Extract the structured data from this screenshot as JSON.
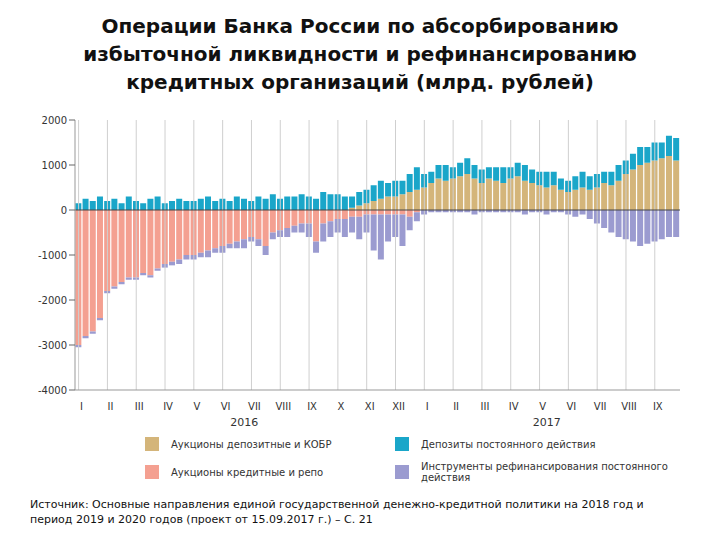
{
  "chart_data": {
    "type": "bar",
    "title": "Операции Банка России по абсорбированию избыточной ликвидности и рефинансированию кредитных организаций (млрд. рублей)",
    "source": "Источник: Основные направления единой государственной денежно-кредитной политики на 2018 год и период 2019 и 2020 годов (проект от 15.09.2017 г.) – С. 21",
    "stacked": true,
    "grid": true,
    "legend": "bottom",
    "ylim": [
      -4000,
      2000
    ],
    "yticks": [
      -4000,
      -3000,
      -2000,
      -1000,
      0,
      1000,
      2000
    ],
    "year_groups": [
      {
        "label": "2016",
        "start": 0,
        "end": 47
      },
      {
        "label": "2017",
        "start": 48,
        "end": 83
      }
    ],
    "categories": [
      "I",
      null,
      null,
      null,
      "II",
      null,
      null,
      null,
      "III",
      null,
      null,
      null,
      "IV",
      null,
      null,
      null,
      "V",
      null,
      null,
      null,
      "VI",
      null,
      null,
      null,
      "VII",
      null,
      null,
      null,
      "VIII",
      null,
      null,
      null,
      "IX",
      null,
      null,
      null,
      "X",
      null,
      null,
      null,
      "XI",
      null,
      null,
      null,
      "XII",
      null,
      null,
      null,
      "I",
      null,
      null,
      null,
      "II",
      null,
      null,
      null,
      "III",
      null,
      null,
      null,
      "IV",
      null,
      null,
      null,
      "V",
      null,
      null,
      null,
      "VI",
      null,
      null,
      null,
      "VII",
      null,
      null,
      null,
      "VIII",
      null,
      null,
      null,
      "IX",
      null,
      null,
      null
    ],
    "series": [
      {
        "name": "Аукционы депозитные и КОБР",
        "color": "#d4b57a",
        "values": [
          0,
          0,
          0,
          0,
          0,
          0,
          0,
          0,
          0,
          0,
          0,
          0,
          0,
          0,
          0,
          0,
          0,
          0,
          0,
          0,
          0,
          0,
          0,
          0,
          0,
          0,
          0,
          0,
          0,
          0,
          0,
          0,
          0,
          0,
          0,
          0,
          0,
          0,
          50,
          100,
          150,
          200,
          250,
          300,
          300,
          350,
          400,
          450,
          500,
          600,
          700,
          650,
          700,
          750,
          800,
          700,
          600,
          700,
          650,
          600,
          700,
          750,
          650,
          600,
          550,
          500,
          550,
          450,
          400,
          450,
          500,
          450,
          500,
          600,
          550,
          650,
          800,
          900,
          1000,
          1050,
          1100,
          1150,
          1200,
          1100
        ]
      },
      {
        "name": "Депозиты постоянного действия",
        "color": "#1aa6c9",
        "values": [
          150,
          250,
          200,
          300,
          200,
          250,
          150,
          300,
          200,
          150,
          250,
          300,
          150,
          200,
          250,
          200,
          200,
          250,
          300,
          200,
          250,
          200,
          300,
          250,
          200,
          300,
          250,
          350,
          250,
          300,
          300,
          350,
          300,
          250,
          400,
          350,
          350,
          300,
          250,
          300,
          300,
          350,
          400,
          300,
          350,
          300,
          400,
          500,
          300,
          250,
          300,
          350,
          250,
          300,
          350,
          300,
          300,
          250,
          300,
          350,
          250,
          300,
          350,
          300,
          300,
          350,
          300,
          250,
          250,
          300,
          350,
          300,
          300,
          250,
          300,
          350,
          300,
          350,
          400,
          350,
          400,
          350,
          450,
          500
        ]
      },
      {
        "name": "Аукционы кредитные и репо",
        "color": "#f4a091",
        "values": [
          -3000,
          -2800,
          -2700,
          -2400,
          -1800,
          -1700,
          -1600,
          -1500,
          -1500,
          -1400,
          -1450,
          -1300,
          -1200,
          -1150,
          -1100,
          -1000,
          -1000,
          -950,
          -900,
          -850,
          -800,
          -750,
          -700,
          -650,
          -600,
          -650,
          -800,
          -500,
          -450,
          -400,
          -350,
          -300,
          -300,
          -700,
          -300,
          -250,
          -200,
          -200,
          -150,
          -150,
          -100,
          -100,
          -100,
          -100,
          -100,
          -100,
          -150,
          -50,
          0,
          0,
          0,
          0,
          0,
          0,
          0,
          0,
          0,
          0,
          0,
          0,
          0,
          0,
          0,
          0,
          0,
          0,
          0,
          0,
          0,
          0,
          0,
          0,
          0,
          0,
          0,
          0,
          0,
          0,
          0,
          0,
          0,
          0,
          0,
          0
        ]
      },
      {
        "name": "Инструменты рефинансирования постоянного действия",
        "color": "#9b9bd0",
        "values": [
          -50,
          -50,
          -50,
          -50,
          -50,
          -50,
          -50,
          -50,
          -50,
          -50,
          -50,
          -50,
          -80,
          -80,
          -100,
          -100,
          -100,
          -100,
          -150,
          -100,
          -150,
          -100,
          -150,
          -200,
          -100,
          -150,
          -200,
          -150,
          -150,
          -200,
          -150,
          -200,
          -300,
          -250,
          -400,
          -350,
          -300,
          -400,
          -350,
          -500,
          -400,
          -800,
          -1000,
          -600,
          -500,
          -700,
          -300,
          -200,
          -100,
          -50,
          -50,
          -50,
          -50,
          -50,
          -50,
          -100,
          -50,
          -50,
          -50,
          -50,
          -50,
          -50,
          -100,
          -50,
          -50,
          -100,
          -50,
          -50,
          -100,
          -150,
          -100,
          -200,
          -300,
          -400,
          -500,
          -600,
          -650,
          -700,
          -800,
          -750,
          -700,
          -650,
          -600,
          -600
        ]
      }
    ]
  }
}
